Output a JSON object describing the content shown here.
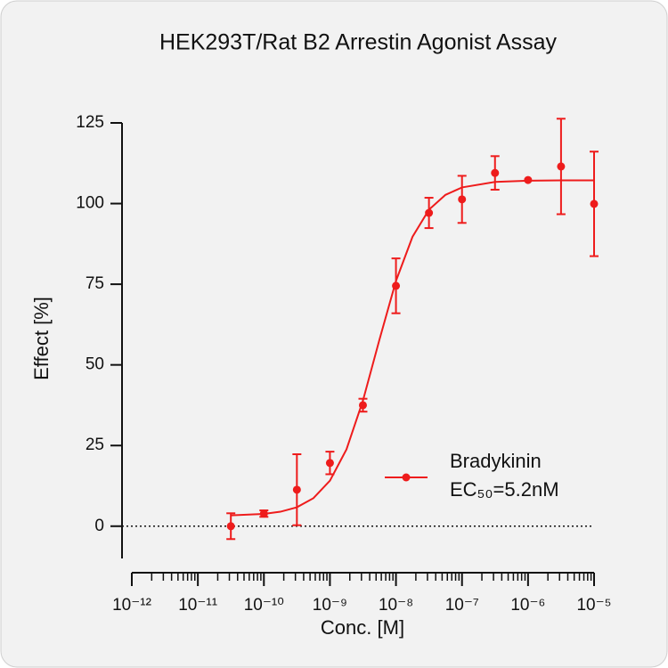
{
  "chart_data": {
    "type": "dose-response",
    "title": "HEK293T/Rat B2 Arrestin Agonist Assay",
    "x_label": "Conc. [M]",
    "y_label": "Effect  [%]",
    "x_scale": "log",
    "xlim": [
      1e-12,
      1e-05
    ],
    "xticks": [
      {
        "value": 1e-12,
        "label": "10⁻¹²"
      },
      {
        "value": 1e-11,
        "label": "10⁻¹¹"
      },
      {
        "value": 1e-10,
        "label": "10⁻¹⁰"
      },
      {
        "value": 1e-09,
        "label": "10⁻⁹"
      },
      {
        "value": 1e-08,
        "label": "10⁻⁸"
      },
      {
        "value": 1e-07,
        "label": "10⁻⁷"
      },
      {
        "value": 1e-06,
        "label": "10⁻⁶"
      },
      {
        "value": 1e-05,
        "label": "10⁻⁵"
      }
    ],
    "ylim": [
      -10,
      125
    ],
    "yticks": [
      0,
      25,
      50,
      75,
      100,
      125
    ],
    "zero_line": "dotted",
    "series": [
      {
        "name": "Bradykinin",
        "annotation": "EC₅₀=5.2nM",
        "color": "#ee1c1c",
        "x": [
          3.16e-11,
          1e-10,
          3.16e-10,
          1e-09,
          3.16e-09,
          1e-08,
          3.16e-08,
          1e-07,
          3.16e-07,
          1e-06,
          3.16e-06,
          1e-05
        ],
        "values": [
          0,
          3.9,
          11.3,
          19.6,
          37.5,
          74.5,
          97.1,
          101.3,
          109.5,
          107.3,
          111.5,
          99.9
        ],
        "errors": [
          4,
          1,
          11,
          3.5,
          2,
          8.5,
          4.7,
          7.3,
          5.2,
          0,
          14.8,
          16.2
        ],
        "fit": {
          "x": [
            3.16e-11,
            1e-10,
            1.78e-10,
            3.16e-10,
            5.62e-10,
            1e-09,
            1.78e-09,
            3.16e-09,
            5.62e-09,
            1e-08,
            1.78e-08,
            3.16e-08,
            5.62e-08,
            1e-07,
            3.16e-07,
            1e-06,
            3.16e-06,
            1e-05
          ],
          "values": [
            3.34,
            3.81,
            4.48,
            5.86,
            8.67,
            14.11,
            23.8,
            38.9,
            57.8,
            76.0,
            89.7,
            98.1,
            102.7,
            105.0,
            106.7,
            107.1,
            107.2,
            107.2
          ]
        }
      }
    ]
  }
}
